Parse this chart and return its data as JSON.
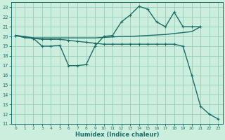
{
  "xlabel": "Humidex (Indice chaleur)",
  "bg_color": "#cceedd",
  "grid_color": "#99ccbb",
  "line_color": "#1a6e6a",
  "xlim": [
    -0.5,
    23.5
  ],
  "ylim": [
    11,
    23.5
  ],
  "yticks": [
    11,
    12,
    13,
    14,
    15,
    16,
    17,
    18,
    19,
    20,
    21,
    22,
    23
  ],
  "xticks": [
    0,
    1,
    2,
    3,
    4,
    5,
    6,
    7,
    8,
    9,
    10,
    11,
    12,
    13,
    14,
    15,
    16,
    17,
    18,
    19,
    20,
    21,
    22,
    23
  ],
  "line1_x": [
    0,
    1,
    2,
    3,
    4,
    5,
    6,
    7,
    8,
    9,
    10,
    11,
    12,
    13,
    14,
    15,
    16,
    17,
    18,
    19,
    20,
    21
  ],
  "line1_y": [
    20.1,
    20.0,
    19.85,
    19.85,
    19.85,
    19.85,
    19.85,
    19.85,
    19.85,
    19.85,
    19.9,
    19.95,
    20.0,
    20.0,
    20.05,
    20.1,
    20.15,
    20.2,
    20.3,
    20.4,
    20.5,
    21.0
  ],
  "line2_x": [
    0,
    1,
    2,
    3,
    4,
    5,
    6,
    7,
    8,
    9,
    10,
    11,
    12,
    13,
    14,
    15,
    16,
    17,
    18,
    19,
    20,
    21
  ],
  "line2_y": [
    20.1,
    19.9,
    19.8,
    19.0,
    19.0,
    19.1,
    17.0,
    17.0,
    17.1,
    19.0,
    20.0,
    20.1,
    21.5,
    22.2,
    23.1,
    22.8,
    21.5,
    21.0,
    22.5,
    21.0,
    21.0,
    21.0
  ],
  "line3_x": [
    0,
    1,
    2,
    3,
    4,
    5,
    6,
    7,
    8,
    9,
    10,
    11,
    12,
    13,
    14,
    15,
    16,
    17,
    18,
    19,
    20,
    21,
    22,
    23
  ],
  "line3_y": [
    20.1,
    19.9,
    19.8,
    19.7,
    19.7,
    19.7,
    19.6,
    19.5,
    19.4,
    19.3,
    19.2,
    19.2,
    19.2,
    19.2,
    19.2,
    19.2,
    19.2,
    19.2,
    19.2,
    19.0,
    16.0,
    12.8,
    12.0,
    11.5
  ]
}
